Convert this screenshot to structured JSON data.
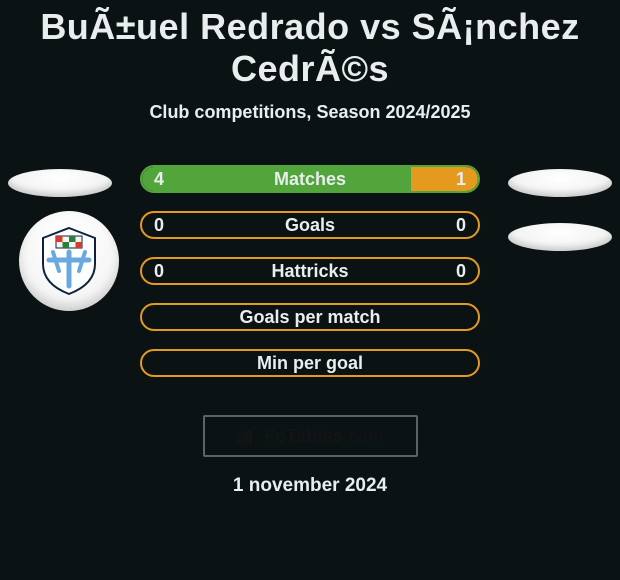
{
  "header": {
    "title": "BuÃ±uel Redrado vs SÃ¡nchez CedrÃ©s",
    "subtitle": "Club competitions, Season 2024/2025"
  },
  "colors": {
    "background": "#0b1214",
    "text": "#e9edee",
    "green_border": "#51a53a",
    "green_fill": "#51a53a",
    "orange_border": "#e49a1f",
    "orange_fill": "#e49a1f",
    "brand_border": "#5a6368",
    "brand_text": "#141414"
  },
  "bars": [
    {
      "label": "Matches",
      "left_value": "4",
      "right_value": "1",
      "left_pct": 80,
      "right_pct": 20,
      "border_color": "#51a53a",
      "left_fill_color": "#51a53a",
      "right_fill_color": "#e49a1f"
    },
    {
      "label": "Goals",
      "left_value": "0",
      "right_value": "0",
      "left_pct": 0,
      "right_pct": 0,
      "border_color": "#e49a1f",
      "left_fill_color": "#51a53a",
      "right_fill_color": "#e49a1f"
    },
    {
      "label": "Hattricks",
      "left_value": "0",
      "right_value": "0",
      "left_pct": 0,
      "right_pct": 0,
      "border_color": "#e49a1f",
      "left_fill_color": "#51a53a",
      "right_fill_color": "#e49a1f"
    },
    {
      "label": "Goals per match",
      "left_value": "",
      "right_value": "",
      "left_pct": 0,
      "right_pct": 0,
      "border_color": "#e49a1f",
      "left_fill_color": "#51a53a",
      "right_fill_color": "#e49a1f"
    },
    {
      "label": "Min per goal",
      "left_value": "",
      "right_value": "",
      "left_pct": 0,
      "right_pct": 0,
      "border_color": "#e49a1f",
      "left_fill_color": "#51a53a",
      "right_fill_color": "#e49a1f"
    }
  ],
  "brand": {
    "text_bold": "FcTables",
    "text_light": ".com"
  },
  "footer": {
    "date": "1 november 2024"
  }
}
